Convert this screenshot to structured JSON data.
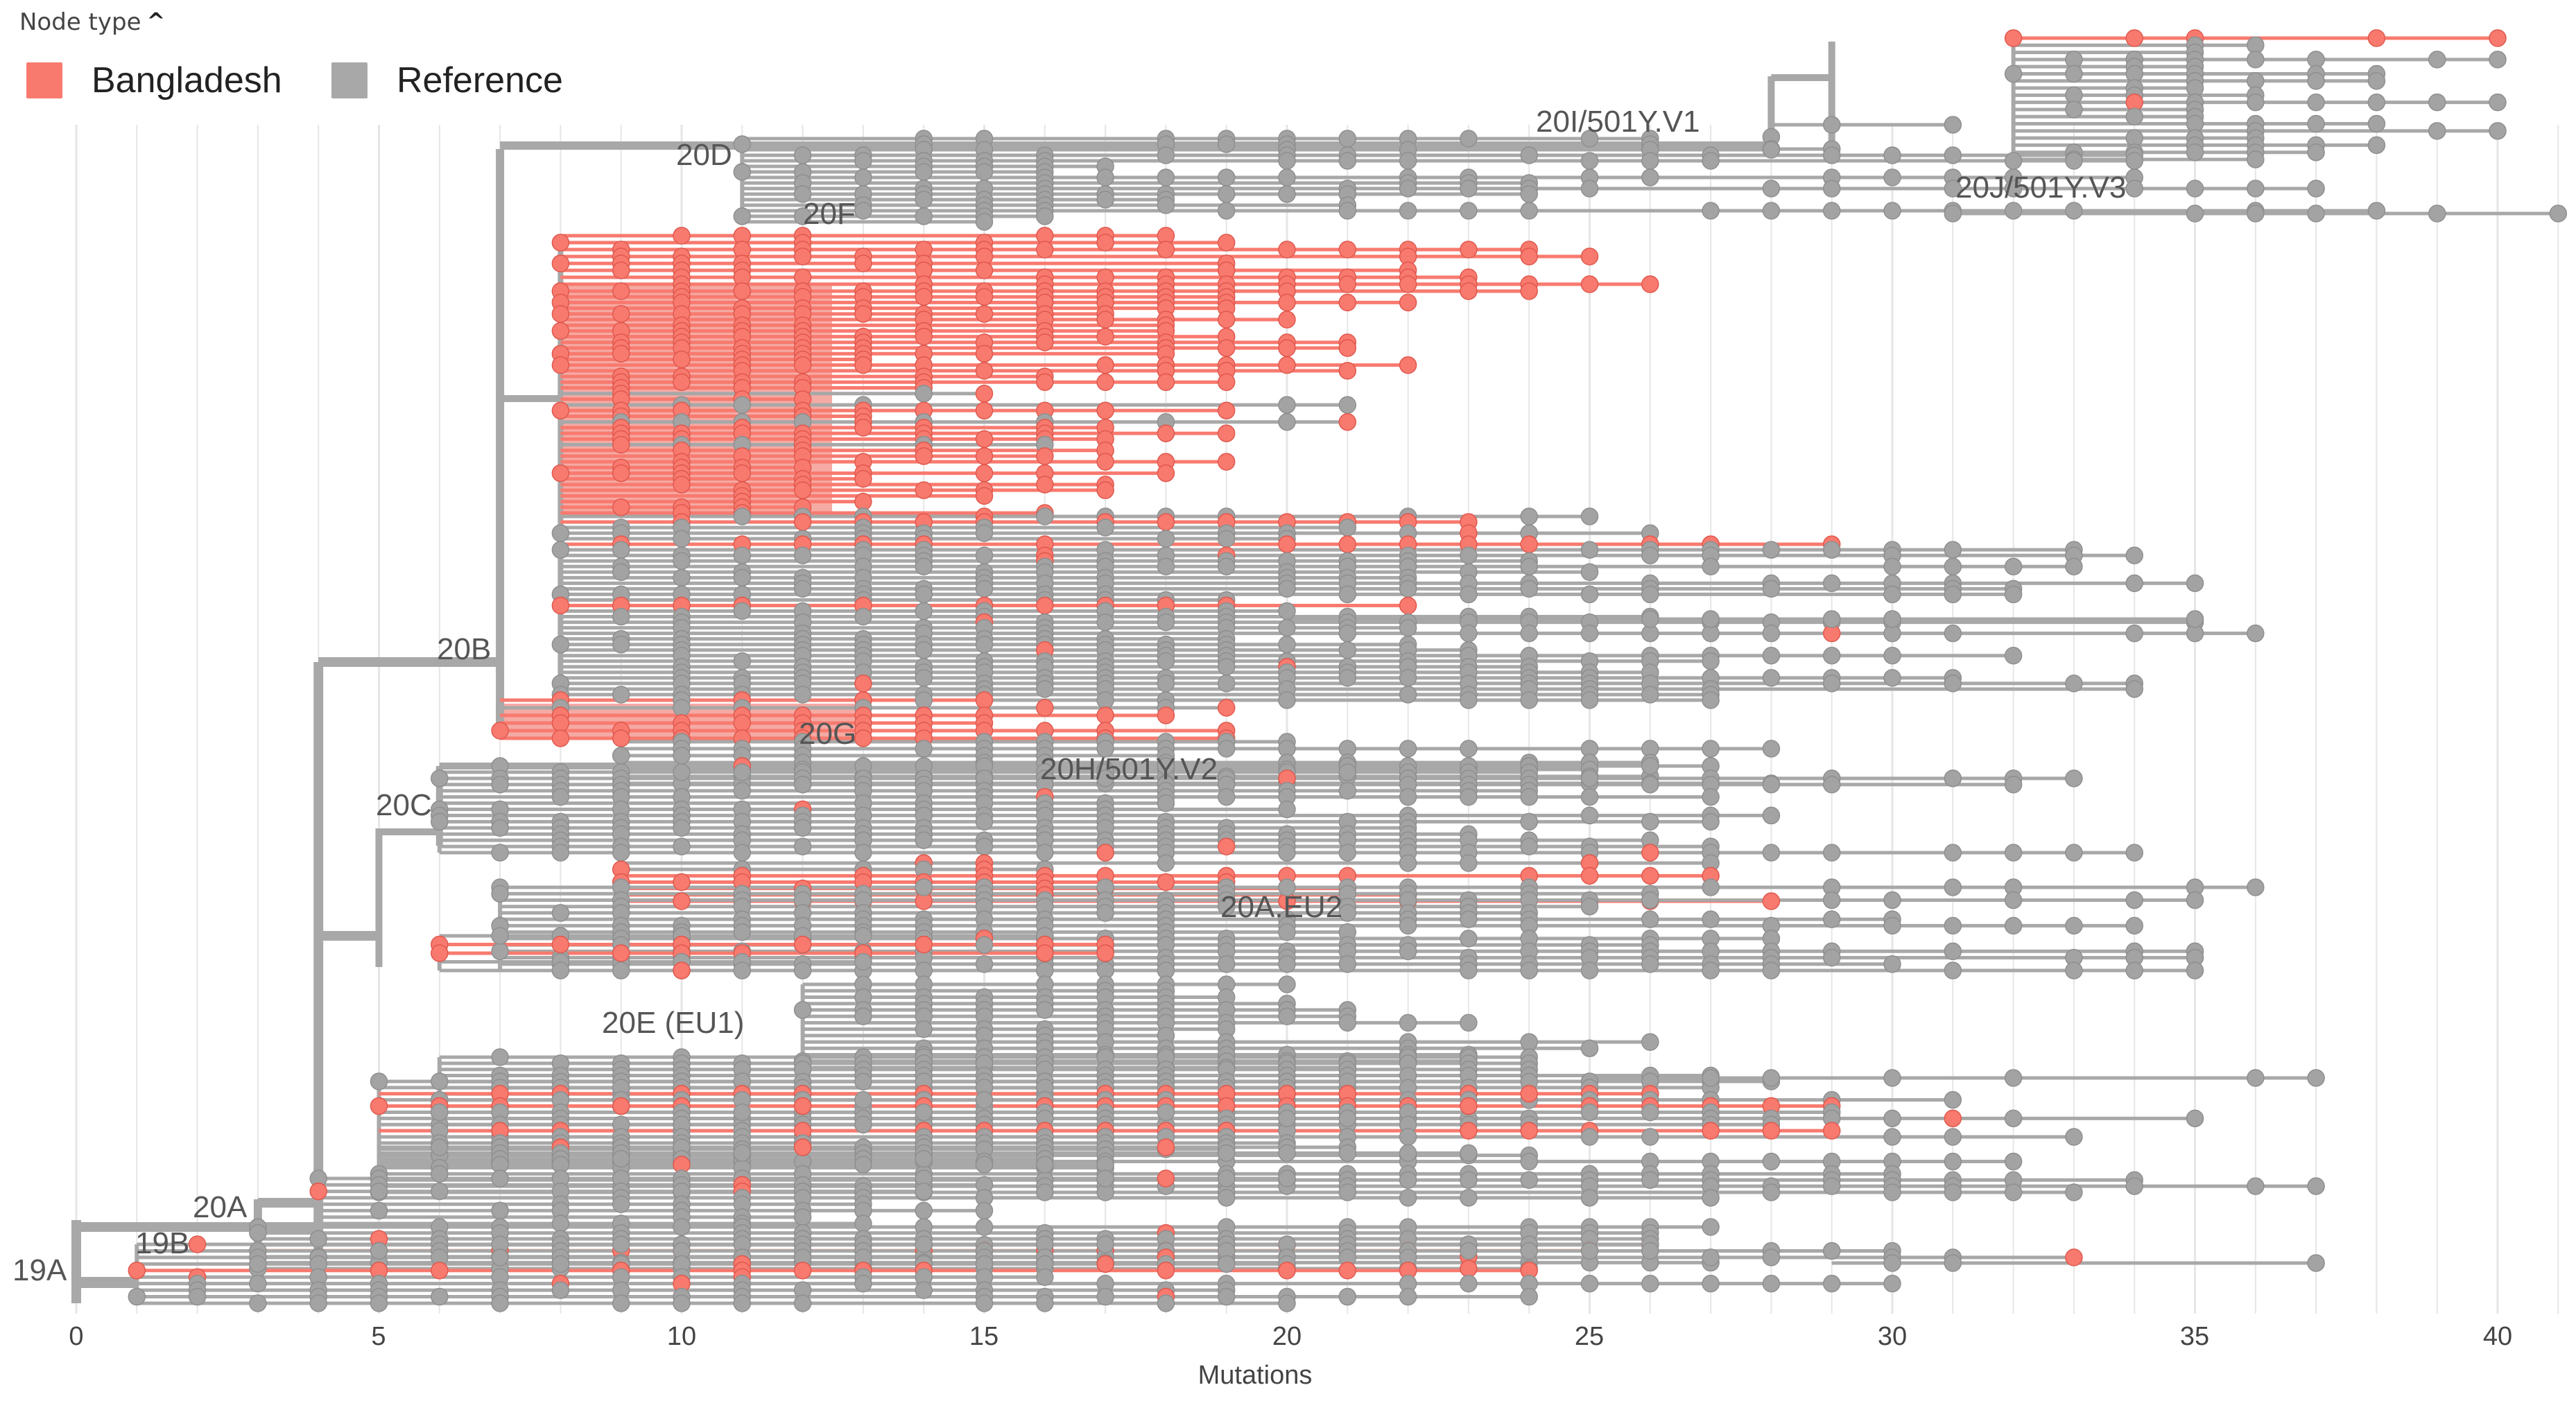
{
  "legend": {
    "title": "Node type",
    "items": [
      {
        "label": "Bangladesh",
        "color": "#f87a6f"
      },
      {
        "label": "Reference",
        "color": "#a8a8a8"
      }
    ]
  },
  "axis": {
    "title": "Mutations",
    "ticks": [
      "0",
      "5",
      "10",
      "15",
      "20",
      "25",
      "30",
      "35",
      "40"
    ]
  },
  "clades": {
    "c19A": "19A",
    "c19B": "19B",
    "c20A": "20A",
    "c20B": "20B",
    "c20C": "20C",
    "c20D": "20D",
    "c20E": "20E (EU1)",
    "c20F": "20F",
    "c20G": "20G",
    "c20H": "20H/501Y.V2",
    "c20I": "20I/501Y.V1",
    "c20J": "20J/501Y.V3",
    "c20AEU2": "20A.EU2"
  },
  "colors": {
    "bangladesh": "#f87a6f",
    "bangladesh_fill": "#f4a19a",
    "reference": "#a8a8a8",
    "reference_node": "#a3a3a3",
    "grid": "#e6e6e6"
  }
}
